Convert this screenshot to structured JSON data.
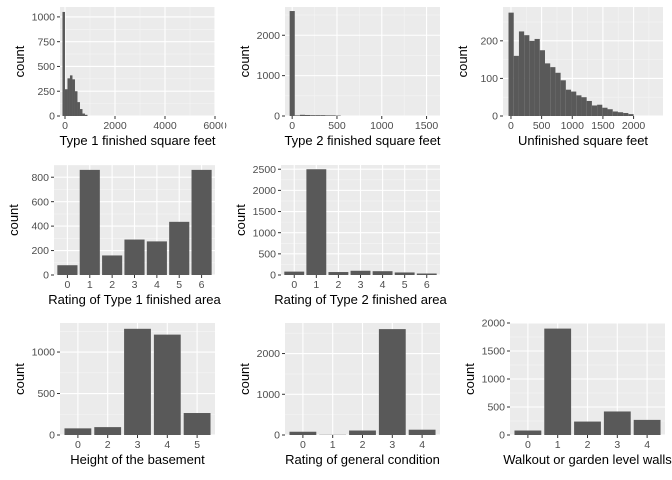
{
  "colors": {
    "panel": "#ebebeb",
    "grid_major": "#ffffff",
    "grid_minor": "#f5f5f5",
    "bar": "#595959",
    "tick_text": "#4d4d4d"
  },
  "chart_data": [
    {
      "id": "c1",
      "type": "histogram",
      "xlabel": "Type 1 finished square feet",
      "ylabel": "count",
      "xlim": [
        -200,
        6000
      ],
      "ylim": [
        0,
        1100
      ],
      "xticks": [
        0,
        2000,
        4000,
        6000
      ],
      "xtick_labels": [
        "0",
        "2000",
        "4000",
        "6000"
      ],
      "yticks": [
        0,
        250,
        500,
        750,
        1000
      ],
      "bin_start": -101,
      "bin_width": 100,
      "values": [
        1050,
        270,
        380,
        410,
        370,
        250,
        140,
        70,
        25,
        12
      ]
    },
    {
      "id": "c2",
      "type": "histogram",
      "xlabel": "Type 2 finished square feet",
      "ylabel": "count",
      "xlim": [
        -80,
        1650
      ],
      "ylim": [
        0,
        2700
      ],
      "xticks": [
        0,
        500,
        1000,
        1500
      ],
      "xtick_labels": [
        "0",
        "500",
        "1000",
        "1500"
      ],
      "yticks": [
        0,
        1000,
        2000
      ],
      "bin_start": -28,
      "bin_width": 57,
      "values": [
        2600,
        15,
        30,
        25,
        20,
        20,
        20,
        15,
        15,
        10
      ]
    },
    {
      "id": "c3",
      "type": "histogram",
      "xlabel": "Unfinished square feet",
      "ylabel": "count",
      "xlim": [
        -130,
        2480
      ],
      "ylim": [
        0,
        290
      ],
      "xticks": [
        0,
        500,
        1000,
        1500,
        2000
      ],
      "xtick_labels": [
        "0",
        "500",
        "1000",
        "1500",
        "2000"
      ],
      "yticks": [
        0,
        100,
        200
      ],
      "bin_start": -40,
      "bin_width": 85,
      "values": [
        275,
        160,
        225,
        215,
        200,
        205,
        175,
        140,
        130,
        115,
        95,
        70,
        65,
        55,
        50,
        40,
        28,
        30,
        22,
        18,
        12,
        10,
        8,
        5
      ]
    },
    {
      "id": "c4",
      "type": "bar",
      "xlabel": "Rating of Type 1 finished area",
      "ylabel": "count",
      "categories": [
        "0",
        "1",
        "2",
        "3",
        "4",
        "5",
        "6"
      ],
      "values": [
        80,
        860,
        160,
        290,
        275,
        435,
        860
      ],
      "ylim": [
        0,
        900
      ],
      "yticks": [
        0,
        200,
        400,
        600,
        800
      ]
    },
    {
      "id": "c5",
      "type": "bar",
      "xlabel": "Rating of Type 2 finished area",
      "ylabel": "count",
      "categories": [
        "0",
        "1",
        "2",
        "3",
        "4",
        "5",
        "6"
      ],
      "values": [
        80,
        2500,
        70,
        100,
        90,
        60,
        35
      ],
      "ylim": [
        0,
        2600
      ],
      "yticks": [
        0,
        500,
        1000,
        1500,
        2000,
        2500
      ]
    },
    {
      "id": "c6",
      "type": "bar",
      "xlabel": "Height of the basement",
      "ylabel": "count",
      "categories": [
        "0",
        "2",
        "3",
        "4",
        "5"
      ],
      "values": [
        80,
        95,
        1280,
        1210,
        265
      ],
      "ylim": [
        0,
        1350
      ],
      "yticks": [
        0,
        500,
        1000
      ]
    },
    {
      "id": "c7",
      "type": "bar",
      "xlabel": "Rating of general condition",
      "ylabel": "count",
      "categories": [
        "0",
        "1",
        "2",
        "3",
        "4"
      ],
      "values": [
        80,
        5,
        110,
        2600,
        130
      ],
      "ylim": [
        0,
        2750
      ],
      "yticks": [
        0,
        1000,
        2000
      ]
    },
    {
      "id": "c8",
      "type": "bar",
      "xlabel": "Walkout or garden level walls",
      "ylabel": "count",
      "categories": [
        "0",
        "1",
        "2",
        "3",
        "4"
      ],
      "values": [
        80,
        1900,
        240,
        420,
        270
      ],
      "ylim": [
        0,
        2000
      ],
      "yticks": [
        0,
        500,
        1000,
        1500,
        2000
      ]
    }
  ]
}
